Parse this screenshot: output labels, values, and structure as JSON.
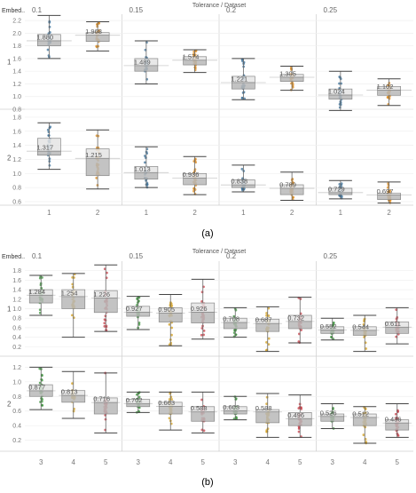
{
  "chart_data": [
    {
      "type": "box",
      "panel_label": "(a)",
      "title": "Tolerance / Dataset",
      "row_header": "Embed..",
      "tolerances": [
        "0.1",
        "0.15",
        "0.2",
        "0.25"
      ],
      "datasets": [
        "1",
        "2"
      ],
      "series_colors": {
        "1": "#3d7199",
        "2": "#d98a1f"
      },
      "rows": [
        {
          "label": "1",
          "ylim": [
            0.8,
            2.3
          ],
          "ticks": [
            0.8,
            1.0,
            1.2,
            1.4,
            1.6,
            1.8,
            2.0,
            2.2
          ],
          "tick_labels": [
            "0.8",
            "1.0",
            "1.2",
            "1.4",
            "1.6",
            "1.8",
            "2.0",
            "2.2"
          ],
          "boxes": [
            {
              "tolerance": "0.1",
              "dataset": "1",
              "value_label": "1.880",
              "median": 1.88,
              "q1": 1.8,
              "q3": 1.98,
              "whisker_low": 1.6,
              "whisker_high": 2.28
            },
            {
              "tolerance": "0.1",
              "dataset": "2",
              "value_label": "1.968",
              "median": 1.968,
              "q1": 1.87,
              "q3": 2.01,
              "whisker_low": 1.72,
              "whisker_high": 2.18
            },
            {
              "tolerance": "0.15",
              "dataset": "1",
              "value_label": "1.489",
              "median": 1.489,
              "q1": 1.4,
              "q3": 1.6,
              "whisker_low": 1.2,
              "whisker_high": 1.88
            },
            {
              "tolerance": "0.15",
              "dataset": "2",
              "value_label": "1.574",
              "median": 1.574,
              "q1": 1.5,
              "q3": 1.63,
              "whisker_low": 1.38,
              "whisker_high": 1.74
            },
            {
              "tolerance": "0.2",
              "dataset": "1",
              "value_label": "1.221",
              "median": 1.221,
              "q1": 1.12,
              "q3": 1.32,
              "whisker_low": 0.95,
              "whisker_high": 1.6
            },
            {
              "tolerance": "0.2",
              "dataset": "2",
              "value_label": "1.305",
              "median": 1.305,
              "q1": 1.24,
              "q3": 1.35,
              "whisker_low": 1.1,
              "whisker_high": 1.48
            },
            {
              "tolerance": "0.25",
              "dataset": "1",
              "value_label": "1.024",
              "median": 1.024,
              "q1": 0.96,
              "q3": 1.12,
              "whisker_low": 0.78,
              "whisker_high": 1.4
            },
            {
              "tolerance": "0.25",
              "dataset": "2",
              "value_label": "1.102",
              "median": 1.102,
              "q1": 1.02,
              "q3": 1.16,
              "whisker_low": 0.86,
              "whisker_high": 1.28
            }
          ]
        },
        {
          "label": "2",
          "ylim": [
            0.55,
            1.9
          ],
          "ticks": [
            0.6,
            0.8,
            1.0,
            1.2,
            1.4,
            1.6,
            1.8
          ],
          "tick_labels": [
            "0.6",
            "0.8",
            "1.0",
            "1.2",
            "1.4",
            "1.6",
            "1.8"
          ],
          "boxes": [
            {
              "tolerance": "0.1",
              "dataset": "1",
              "value_label": "1.317",
              "median": 1.317,
              "q1": 1.26,
              "q3": 1.5,
              "whisker_low": 1.06,
              "whisker_high": 1.72
            },
            {
              "tolerance": "0.1",
              "dataset": "2",
              "value_label": "1.215",
              "median": 1.215,
              "q1": 0.97,
              "q3": 1.35,
              "whisker_low": 0.78,
              "whisker_high": 1.62
            },
            {
              "tolerance": "0.15",
              "dataset": "1",
              "value_label": "1.013",
              "median": 1.013,
              "q1": 0.92,
              "q3": 1.1,
              "whisker_low": 0.8,
              "whisker_high": 1.38
            },
            {
              "tolerance": "0.15",
              "dataset": "2",
              "value_label": "0.936",
              "median": 0.936,
              "q1": 0.84,
              "q3": 1.0,
              "whisker_low": 0.7,
              "whisker_high": 1.24
            },
            {
              "tolerance": "0.2",
              "dataset": "1",
              "value_label": "0.838",
              "median": 0.838,
              "q1": 0.8,
              "q3": 0.91,
              "whisker_low": 0.74,
              "whisker_high": 1.12
            },
            {
              "tolerance": "0.2",
              "dataset": "2",
              "value_label": "0.789",
              "median": 0.789,
              "q1": 0.7,
              "q3": 0.84,
              "whisker_low": 0.62,
              "whisker_high": 1.02
            },
            {
              "tolerance": "0.25",
              "dataset": "1",
              "value_label": "0.729",
              "median": 0.729,
              "q1": 0.7,
              "q3": 0.79,
              "whisker_low": 0.64,
              "whisker_high": 0.9
            },
            {
              "tolerance": "0.25",
              "dataset": "2",
              "value_label": "0.697",
              "median": 0.697,
              "q1": 0.63,
              "q3": 0.72,
              "whisker_low": 0.58,
              "whisker_high": 0.88
            }
          ]
        }
      ]
    },
    {
      "type": "box",
      "panel_label": "(b)",
      "title": "Tolerance / Dataset",
      "row_header": "Embed..",
      "tolerances": [
        "0.1",
        "0.15",
        "0.2",
        "0.25"
      ],
      "datasets": [
        "3",
        "4",
        "5"
      ],
      "series_colors": {
        "3": "#3a923a",
        "4": "#d4a020",
        "5": "#c8404a"
      },
      "rows": [
        {
          "label": "1",
          "ylim": [
            0.0,
            2.0
          ],
          "ticks": [
            0.2,
            0.4,
            0.6,
            0.8,
            1.0,
            1.2,
            1.4,
            1.6,
            1.8
          ],
          "tick_labels": [
            "0.2",
            "0.4",
            "0.6",
            "0.8",
            "1.0",
            "1.2",
            "1.4",
            "1.6",
            "1.8"
          ],
          "boxes": [
            {
              "tolerance": "0.1",
              "dataset": "3",
              "value_label": "1.284",
              "median": 1.284,
              "q1": 1.12,
              "q3": 1.4,
              "whisker_low": 0.86,
              "whisker_high": 1.7
            },
            {
              "tolerance": "0.1",
              "dataset": "4",
              "value_label": "1.254",
              "median": 1.254,
              "q1": 1.0,
              "q3": 1.4,
              "whisker_low": 0.4,
              "whisker_high": 1.74
            },
            {
              "tolerance": "0.1",
              "dataset": "5",
              "value_label": "1.226",
              "median": 1.226,
              "q1": 0.92,
              "q3": 1.38,
              "whisker_low": 0.52,
              "whisker_high": 1.92
            },
            {
              "tolerance": "0.15",
              "dataset": "3",
              "value_label": "0.927",
              "median": 0.927,
              "q1": 0.84,
              "q3": 1.05,
              "whisker_low": 0.56,
              "whisker_high": 1.26
            },
            {
              "tolerance": "0.15",
              "dataset": "4",
              "value_label": "0.905",
              "median": 0.905,
              "q1": 0.72,
              "q3": 1.02,
              "whisker_low": 0.22,
              "whisker_high": 1.3
            },
            {
              "tolerance": "0.15",
              "dataset": "5",
              "value_label": "0.926",
              "median": 0.926,
              "q1": 0.7,
              "q3": 1.12,
              "whisker_low": 0.36,
              "whisker_high": 1.62
            },
            {
              "tolerance": "0.2",
              "dataset": "3",
              "value_label": "0.708",
              "median": 0.708,
              "q1": 0.58,
              "q3": 0.8,
              "whisker_low": 0.4,
              "whisker_high": 1.02
            },
            {
              "tolerance": "0.2",
              "dataset": "4",
              "value_label": "0.687",
              "median": 0.687,
              "q1": 0.52,
              "q3": 0.78,
              "whisker_low": 0.1,
              "whisker_high": 1.04
            },
            {
              "tolerance": "0.2",
              "dataset": "5",
              "value_label": "0.732",
              "median": 0.732,
              "q1": 0.58,
              "q3": 0.86,
              "whisker_low": 0.28,
              "whisker_high": 1.24
            },
            {
              "tolerance": "0.25",
              "dataset": "3",
              "value_label": "0.552",
              "median": 0.552,
              "q1": 0.48,
              "q3": 0.62,
              "whisker_low": 0.34,
              "whisker_high": 0.8
            },
            {
              "tolerance": "0.25",
              "dataset": "4",
              "value_label": "0.544",
              "median": 0.544,
              "q1": 0.44,
              "q3": 0.62,
              "whisker_low": 0.1,
              "whisker_high": 0.86
            },
            {
              "tolerance": "0.25",
              "dataset": "5",
              "value_label": "0.611",
              "median": 0.611,
              "q1": 0.48,
              "q3": 0.72,
              "whisker_low": 0.26,
              "whisker_high": 1.02
            }
          ]
        },
        {
          "label": "2",
          "ylim": [
            0.05,
            1.35
          ],
          "ticks": [
            0.2,
            0.4,
            0.6,
            0.8,
            1.0,
            1.2
          ],
          "tick_labels": [
            "0.2",
            "0.4",
            "0.6",
            "0.8",
            "1.0",
            "1.2"
          ],
          "boxes": [
            {
              "tolerance": "0.1",
              "dataset": "3",
              "value_label": "0.877",
              "median": 0.877,
              "q1": 0.8,
              "q3": 0.96,
              "whisker_low": 0.62,
              "whisker_high": 1.2
            },
            {
              "tolerance": "0.1",
              "dataset": "4",
              "value_label": "0.813",
              "median": 0.813,
              "q1": 0.72,
              "q3": 0.88,
              "whisker_low": 0.5,
              "whisker_high": 1.14
            },
            {
              "tolerance": "0.1",
              "dataset": "5",
              "value_label": "0.716",
              "median": 0.716,
              "q1": 0.56,
              "q3": 0.78,
              "whisker_low": 0.3,
              "whisker_high": 1.12
            },
            {
              "tolerance": "0.15",
              "dataset": "3",
              "value_label": "0.702",
              "median": 0.702,
              "q1": 0.66,
              "q3": 0.76,
              "whisker_low": 0.58,
              "whisker_high": 0.86
            },
            {
              "tolerance": "0.15",
              "dataset": "4",
              "value_label": "0.663",
              "median": 0.663,
              "q1": 0.56,
              "q3": 0.72,
              "whisker_low": 0.34,
              "whisker_high": 0.86
            },
            {
              "tolerance": "0.15",
              "dataset": "5",
              "value_label": "0.588",
              "median": 0.588,
              "q1": 0.46,
              "q3": 0.66,
              "whisker_low": 0.3,
              "whisker_high": 0.86
            },
            {
              "tolerance": "0.2",
              "dataset": "3",
              "value_label": "0.603",
              "median": 0.603,
              "q1": 0.56,
              "q3": 0.66,
              "whisker_low": 0.48,
              "whisker_high": 0.8
            },
            {
              "tolerance": "0.2",
              "dataset": "4",
              "value_label": "0.588",
              "median": 0.588,
              "q1": 0.44,
              "q3": 0.62,
              "whisker_low": 0.24,
              "whisker_high": 0.84
            },
            {
              "tolerance": "0.2",
              "dataset": "5",
              "value_label": "0.496",
              "median": 0.496,
              "q1": 0.4,
              "q3": 0.58,
              "whisker_low": 0.24,
              "whisker_high": 0.82
            },
            {
              "tolerance": "0.25",
              "dataset": "3",
              "value_label": "0.526",
              "median": 0.526,
              "q1": 0.46,
              "q3": 0.56,
              "whisker_low": 0.36,
              "whisker_high": 0.7
            },
            {
              "tolerance": "0.25",
              "dataset": "4",
              "value_label": "0.512",
              "median": 0.512,
              "q1": 0.4,
              "q3": 0.56,
              "whisker_low": 0.16,
              "whisker_high": 0.66
            },
            {
              "tolerance": "0.25",
              "dataset": "5",
              "value_label": "0.436",
              "median": 0.436,
              "q1": 0.34,
              "q3": 0.48,
              "whisker_low": 0.24,
              "whisker_high": 0.7
            }
          ]
        }
      ]
    }
  ]
}
